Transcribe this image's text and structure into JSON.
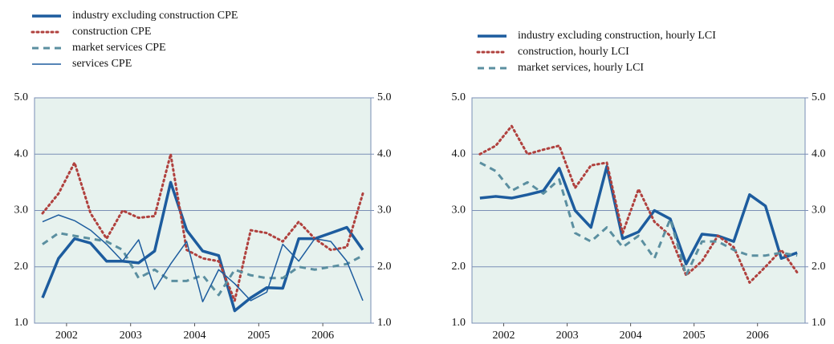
{
  "chart_data": [
    {
      "type": "line",
      "x": [
        2002.125,
        2002.375,
        2002.625,
        2002.875,
        2003.125,
        2003.375,
        2003.625,
        2003.875,
        2004.125,
        2004.375,
        2004.625,
        2004.875,
        2005.125,
        2005.375,
        2005.625,
        2005.875,
        2006.125,
        2006.375,
        2006.625,
        2006.875,
        2007.125
      ],
      "xlim": [
        2002,
        2007.25
      ],
      "xticks": [
        {
          "value": 2002.5,
          "label": "2002"
        },
        {
          "value": 2003.5,
          "label": "2003"
        },
        {
          "value": 2004.5,
          "label": "2004"
        },
        {
          "value": 2005.5,
          "label": "2005"
        },
        {
          "value": 2006.5,
          "label": "2006"
        }
      ],
      "ylim": [
        1,
        5
      ],
      "yticks": [
        {
          "value": 1,
          "label": "1.0"
        },
        {
          "value": 2,
          "label": "2.0"
        },
        {
          "value": 3,
          "label": "3.0"
        },
        {
          "value": 4,
          "label": "4.0"
        },
        {
          "value": 5,
          "label": "5.0"
        }
      ],
      "y2lim": [
        1,
        5
      ],
      "y2ticks": [
        {
          "value": 1,
          "label": "1.0"
        },
        {
          "value": 2,
          "label": "2.0"
        },
        {
          "value": 3,
          "label": "3.0"
        },
        {
          "value": 4,
          "label": "4.0"
        },
        {
          "value": 5,
          "label": "5.0"
        }
      ],
      "grid": true,
      "series": [
        {
          "name": "industry excluding construction CPE",
          "color": "#1d5c9e",
          "style": "solid",
          "width": 3.5,
          "values": [
            1.45,
            2.15,
            2.5,
            2.42,
            2.1,
            2.1,
            2.07,
            2.28,
            3.5,
            2.65,
            2.28,
            2.2,
            1.22,
            1.45,
            1.63,
            1.62,
            2.5,
            2.5,
            2.6,
            2.7,
            2.3
          ]
        },
        {
          "name": "construction CPE",
          "color": "#b0413e",
          "style": "dotted",
          "width": 3,
          "values": [
            2.95,
            3.3,
            3.85,
            2.95,
            2.5,
            3.0,
            2.87,
            2.9,
            4.0,
            2.3,
            2.15,
            2.1,
            1.4,
            2.65,
            2.6,
            2.45,
            2.8,
            2.5,
            2.3,
            2.35,
            3.3
          ]
        },
        {
          "name": "market services CPE",
          "color": "#5b8fa0",
          "style": "dashed",
          "width": 3,
          "values": [
            2.4,
            2.6,
            2.55,
            2.5,
            2.45,
            2.3,
            1.8,
            1.95,
            1.75,
            1.75,
            1.85,
            1.5,
            1.95,
            1.85,
            1.8,
            1.8,
            2.0,
            1.95,
            2.0,
            2.05,
            2.2
          ]
        },
        {
          "name": "services CPE",
          "color": "#1d5c9e",
          "style": "solid",
          "width": 1.5,
          "values": [
            2.8,
            2.92,
            2.82,
            2.65,
            2.4,
            2.1,
            2.48,
            1.6,
            2.05,
            2.45,
            1.38,
            1.95,
            1.7,
            1.4,
            1.55,
            2.4,
            2.1,
            2.5,
            2.45,
            2.1,
            1.4
          ]
        }
      ]
    },
    {
      "type": "line",
      "x": [
        2002.125,
        2002.375,
        2002.625,
        2002.875,
        2003.125,
        2003.375,
        2003.625,
        2003.875,
        2004.125,
        2004.375,
        2004.625,
        2004.875,
        2005.125,
        2005.375,
        2005.625,
        2005.875,
        2006.125,
        2006.375,
        2006.625,
        2006.875,
        2007.125
      ],
      "xlim": [
        2002,
        2007.25
      ],
      "xticks": [
        {
          "value": 2002.5,
          "label": "2002"
        },
        {
          "value": 2003.5,
          "label": "2003"
        },
        {
          "value": 2004.5,
          "label": "2004"
        },
        {
          "value": 2005.5,
          "label": "2005"
        },
        {
          "value": 2006.5,
          "label": "2006"
        }
      ],
      "ylim": [
        1,
        5
      ],
      "yticks": [
        {
          "value": 1,
          "label": "1.0"
        },
        {
          "value": 2,
          "label": "2.0"
        },
        {
          "value": 3,
          "label": "3.0"
        },
        {
          "value": 4,
          "label": "4.0"
        },
        {
          "value": 5,
          "label": "5.0"
        }
      ],
      "y2lim": [
        1,
        5
      ],
      "y2ticks": [
        {
          "value": 1,
          "label": "1.0"
        },
        {
          "value": 2,
          "label": "2.0"
        },
        {
          "value": 3,
          "label": "3.0"
        },
        {
          "value": 4,
          "label": "4.0"
        },
        {
          "value": 5,
          "label": "5.0"
        }
      ],
      "grid": true,
      "series": [
        {
          "name": "industry excluding construction, hourly LCI",
          "color": "#1d5c9e",
          "style": "solid",
          "width": 3.5,
          "values": [
            3.22,
            3.25,
            3.22,
            3.28,
            3.35,
            3.75,
            3.0,
            2.7,
            3.78,
            2.5,
            2.62,
            3.0,
            2.85,
            2.05,
            2.58,
            2.55,
            2.45,
            3.28,
            3.08,
            2.15,
            2.25
          ]
        },
        {
          "name": "construction, hourly LCI",
          "color": "#b0413e",
          "style": "dotted",
          "width": 3,
          "values": [
            4.0,
            4.15,
            4.5,
            4.0,
            4.08,
            4.15,
            3.4,
            3.8,
            3.85,
            2.6,
            3.38,
            2.8,
            2.55,
            1.85,
            2.1,
            2.55,
            2.35,
            1.72,
            2.0,
            2.3,
            1.9
          ]
        },
        {
          "name": "market services, hourly LCI",
          "color": "#5b8fa0",
          "style": "dashed",
          "width": 3,
          "values": [
            3.85,
            3.7,
            3.35,
            3.5,
            3.3,
            3.55,
            2.6,
            2.45,
            2.7,
            2.35,
            2.55,
            2.15,
            2.85,
            1.85,
            2.45,
            2.45,
            2.3,
            2.2,
            2.2,
            2.25,
            2.2
          ]
        }
      ]
    }
  ]
}
